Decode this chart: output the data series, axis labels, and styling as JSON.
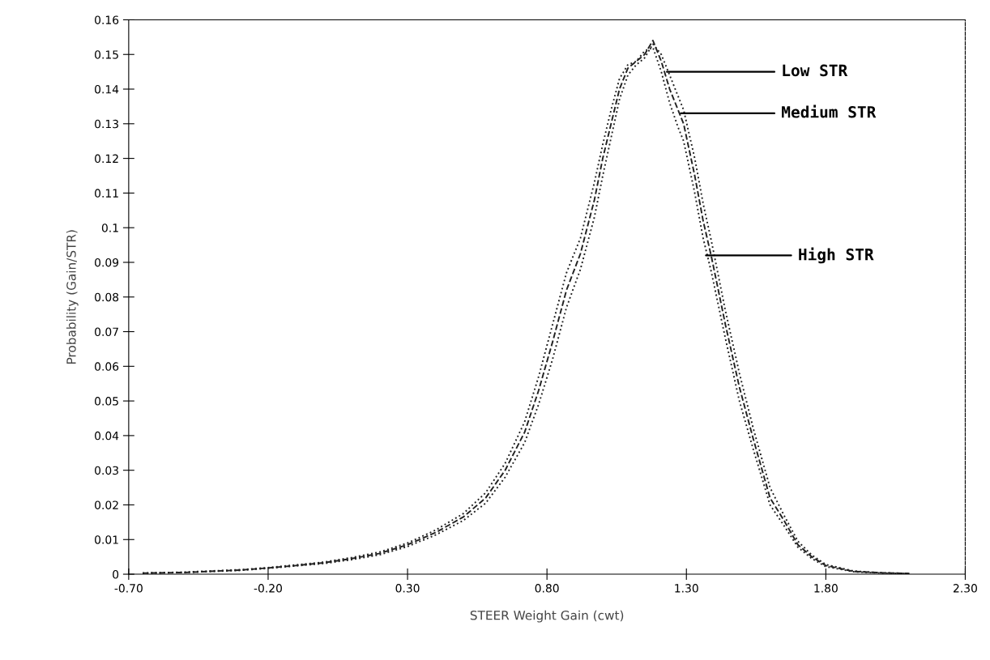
{
  "chart_data": {
    "type": "line",
    "xlabel": "STEER Weight Gain (cwt)",
    "ylabel": "Probability (Gain/STR)",
    "xlim": [
      -0.7,
      2.3
    ],
    "xticks": [
      {
        "value": -0.7,
        "label": "-0.70"
      },
      {
        "value": -0.2,
        "label": "-0.20"
      },
      {
        "value": 0.3,
        "label": "0.30"
      },
      {
        "value": 0.8,
        "label": "0.80"
      },
      {
        "value": 1.3,
        "label": "1.30"
      },
      {
        "value": 1.8,
        "label": "1.80"
      },
      {
        "value": 2.3,
        "label": "2.30"
      }
    ],
    "ylim": [
      0,
      0.16
    ],
    "yticks": [
      0,
      0.01,
      0.02,
      0.03,
      0.04,
      0.05,
      0.06,
      0.07,
      0.08,
      0.09,
      0.1,
      0.11,
      0.12,
      0.13,
      0.14,
      0.15,
      0.16
    ],
    "x": [
      -0.65,
      -0.5,
      -0.3,
      -0.2,
      -0.1,
      0.0,
      0.1,
      0.2,
      0.3,
      0.4,
      0.5,
      0.58,
      0.65,
      0.72,
      0.77,
      0.82,
      0.87,
      0.92,
      0.97,
      1.0,
      1.03,
      1.06,
      1.09,
      1.12,
      1.15,
      1.18,
      1.21,
      1.24,
      1.27,
      1.29,
      1.33,
      1.36,
      1.39,
      1.44,
      1.49,
      1.54,
      1.6,
      1.65,
      1.7,
      1.75,
      1.8,
      1.9,
      2.0,
      2.1
    ],
    "series": [
      {
        "color": "#222222",
        "line_style": "dotted",
        "values": [
          0.0003,
          0.0005,
          0.0011,
          0.0017,
          0.0024,
          0.0031,
          0.0042,
          0.0056,
          0.008,
          0.0113,
          0.0155,
          0.0205,
          0.028,
          0.038,
          0.049,
          0.062,
          0.077,
          0.088,
          0.103,
          0.115,
          0.126,
          0.137,
          0.144,
          0.147,
          0.149,
          0.153,
          0.15,
          0.144,
          0.138,
          0.134,
          0.12,
          0.107,
          0.096,
          0.076,
          0.058,
          0.042,
          0.025,
          0.017,
          0.0095,
          0.0055,
          0.0028,
          0.0009,
          0.0004,
          0.0002
        ]
      },
      {
        "color": "#222222",
        "line_style": "dashed",
        "values": [
          0.0003,
          0.0005,
          0.0012,
          0.0018,
          0.0025,
          0.0033,
          0.0045,
          0.006,
          0.0085,
          0.012,
          0.0165,
          0.022,
          0.03,
          0.041,
          0.053,
          0.067,
          0.082,
          0.0925,
          0.108,
          0.12,
          0.13,
          0.14,
          0.146,
          0.148,
          0.15,
          0.154,
          0.148,
          0.14,
          0.134,
          0.13,
          0.115,
          0.102,
          0.0915,
          0.072,
          0.054,
          0.039,
          0.022,
          0.0155,
          0.0085,
          0.005,
          0.0025,
          0.0008,
          0.0004,
          0.0002
        ]
      },
      {
        "color": "#222222",
        "line_style": "dotted",
        "values": [
          0.0003,
          0.0006,
          0.0013,
          0.0019,
          0.0027,
          0.0035,
          0.0048,
          0.0064,
          0.009,
          0.0127,
          0.0175,
          0.0235,
          0.032,
          0.044,
          0.057,
          0.072,
          0.087,
          0.097,
          0.113,
          0.124,
          0.134,
          0.143,
          0.147,
          0.148,
          0.151,
          0.152,
          0.145,
          0.136,
          0.129,
          0.125,
          0.11,
          0.097,
          0.087,
          0.068,
          0.05,
          0.036,
          0.02,
          0.014,
          0.0078,
          0.0045,
          0.0022,
          0.0007,
          0.0003,
          0.0002
        ]
      }
    ],
    "annotations": [
      {
        "text": "Low STR",
        "x": 1.23,
        "y": 0.145
      },
      {
        "text": "Medium STR",
        "x": 1.28,
        "y": 0.133
      },
      {
        "text": "High STR",
        "x": 1.37,
        "y": 0.092
      }
    ],
    "grid": false,
    "legend": false
  }
}
